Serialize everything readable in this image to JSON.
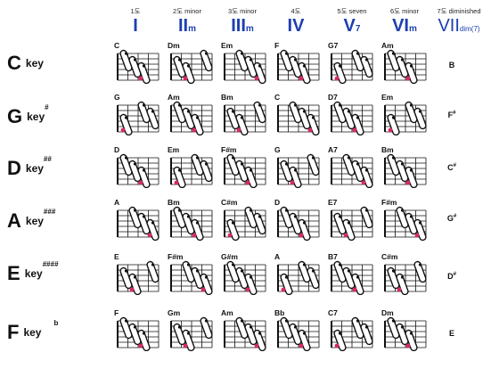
{
  "columns": [
    {
      "sub": "1도",
      "roman": "I",
      "suffix": ""
    },
    {
      "sub": "2도 minor",
      "roman": "II",
      "suffix": "m"
    },
    {
      "sub": "3도 minor",
      "roman": "III",
      "suffix": "m"
    },
    {
      "sub": "4도",
      "roman": "IV",
      "suffix": ""
    },
    {
      "sub": "5도 seven",
      "roman": "V",
      "suffix": "7"
    },
    {
      "sub": "6도 minor",
      "roman": "VI",
      "suffix": "m"
    },
    {
      "sub": "7도 diminished",
      "roman": "VII",
      "suffix": "dim(7)"
    }
  ],
  "rows": [
    {
      "key": "C",
      "word": "key",
      "accidental": "",
      "seventh": "B",
      "seventh_accidental": "",
      "chords": [
        "C",
        "Dm",
        "Em",
        "F",
        "G7",
        "Am"
      ]
    },
    {
      "key": "G",
      "word": "key",
      "accidental": "#",
      "seventh": "F",
      "seventh_accidental": "#",
      "chords": [
        "G",
        "Am",
        "Bm",
        "C",
        "D7",
        "Em"
      ]
    },
    {
      "key": "D",
      "word": "key",
      "accidental": "##",
      "seventh": "C",
      "seventh_accidental": "#",
      "chords": [
        "D",
        "Em",
        "F#m",
        "G",
        "A7",
        "Bm"
      ]
    },
    {
      "key": "A",
      "word": "key",
      "accidental": "###",
      "seventh": "G",
      "seventh_accidental": "#",
      "chords": [
        "A",
        "Bm",
        "C#m",
        "D",
        "E7",
        "F#m"
      ]
    },
    {
      "key": "E",
      "word": "key",
      "accidental": "####",
      "seventh": "D",
      "seventh_accidental": "#",
      "chords": [
        "E",
        "F#m",
        "G#m",
        "A",
        "B7",
        "C#m"
      ]
    },
    {
      "key": "F",
      "word": "key",
      "accidental": "b",
      "seventh": "E",
      "seventh_accidental": "",
      "chords": [
        "F",
        "Gm",
        "Am",
        "Bb",
        "C7",
        "Dm"
      ]
    }
  ],
  "colors": {
    "heading": "#1c3fb0",
    "root_dot": "#d8286a",
    "ink": "#111111"
  }
}
